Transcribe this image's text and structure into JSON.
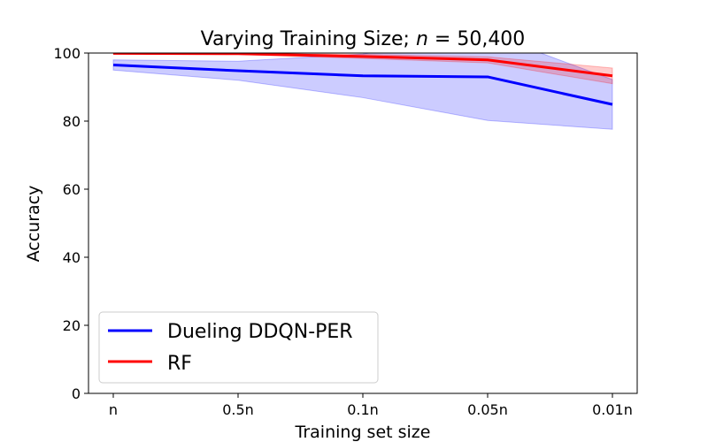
{
  "chart_data": {
    "type": "line",
    "title": "Varying Training Size; n = 50,400",
    "title_parts": {
      "prefix": "Varying Training Size; ",
      "var": "n",
      "suffix": " = 50,400"
    },
    "xlabel": "Training set size",
    "ylabel": "Accuracy",
    "categories": [
      "n",
      "0.5n",
      "0.1n",
      "0.05n",
      "0.01n"
    ],
    "ylim": [
      0,
      100
    ],
    "yticks": [
      0,
      20,
      40,
      60,
      80,
      100
    ],
    "grid": false,
    "legend_position": "lower-left",
    "series": [
      {
        "name": "Dueling DDQN-PER",
        "color": "#0000ff",
        "values": [
          96.5,
          94.8,
          93.3,
          93.0,
          84.9
        ],
        "lower": [
          95.0,
          92.0,
          86.9,
          80.2,
          77.6
        ],
        "upper": [
          98.0,
          97.6,
          99.7,
          105.8,
          92.2
        ]
      },
      {
        "name": "RF",
        "color": "#ff0000",
        "values": [
          99.9,
          99.8,
          99.0,
          98.0,
          93.3
        ],
        "lower": [
          99.8,
          99.6,
          98.4,
          97.1,
          91.0
        ],
        "upper": [
          100.0,
          100.0,
          99.6,
          98.9,
          95.6
        ]
      }
    ]
  }
}
